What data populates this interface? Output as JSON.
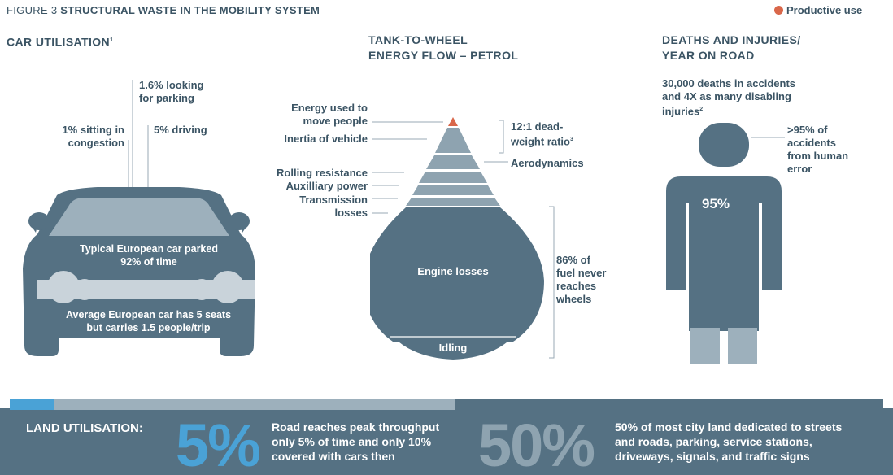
{
  "header": {
    "figure_label": "FIGURE 3",
    "title": "STRUCTURAL WASTE IN THE MOBILITY SYSTEM",
    "legend_label": "Productive use"
  },
  "colors": {
    "dark": "#3b5464",
    "mid": "#557183",
    "light": "#8ea3b0",
    "pale": "#c9d3da",
    "productive": "#d9674a",
    "yellow": "#e9b53b",
    "blue": "#4aa2d6"
  },
  "car": {
    "title": "CAR UTILISATION",
    "title_sup": "1",
    "looking_parking": [
      "1.6% looking",
      "for parking"
    ],
    "congestion": [
      "1% sitting in",
      "congestion"
    ],
    "driving": "5% driving",
    "parked": [
      "Typical European car parked",
      "92% of time"
    ],
    "seats": [
      "Average European car has 5 seats",
      "but carries 1.5 people/trip"
    ]
  },
  "energy": {
    "title": [
      "TANK-TO-WHEEL",
      "ENERGY FLOW – PETROL"
    ],
    "move_people": [
      "Energy used to",
      "move people"
    ],
    "inertia": "Inertia of vehicle",
    "rolling": "Rolling resistance",
    "auxiliary": "Auxilliary power",
    "transmission": [
      "Transmission",
      "losses"
    ],
    "ratio": [
      "12:1 dead-",
      "weight ratio"
    ],
    "ratio_sup": "3",
    "aerodynamics": "Aerodynamics",
    "engine": "Engine losses",
    "idling": "Idling",
    "fuel_never": [
      "86% of",
      "fuel never",
      "reaches",
      "wheels"
    ]
  },
  "deaths": {
    "title": [
      "DEATHS AND INJURIES/",
      "YEAR ON ROAD"
    ],
    "stat": [
      "30,000 deaths in accidents",
      "and 4X as many disabling",
      "injuries"
    ],
    "stat_sup": "2",
    "human_error": [
      ">95% of",
      "accidents",
      "from human",
      "error"
    ],
    "pct": "95%"
  },
  "land": {
    "label": "LAND UTILISATION:",
    "big1": "5%",
    "text1": [
      "Road reaches peak throughput",
      "only 5% of time and only 10%",
      "covered with cars then"
    ],
    "big2": "50%",
    "text2": [
      "50% of most city land dedicated to streets",
      "and roads, parking, service stations,",
      "driveways, signals, and traffic signs"
    ]
  }
}
